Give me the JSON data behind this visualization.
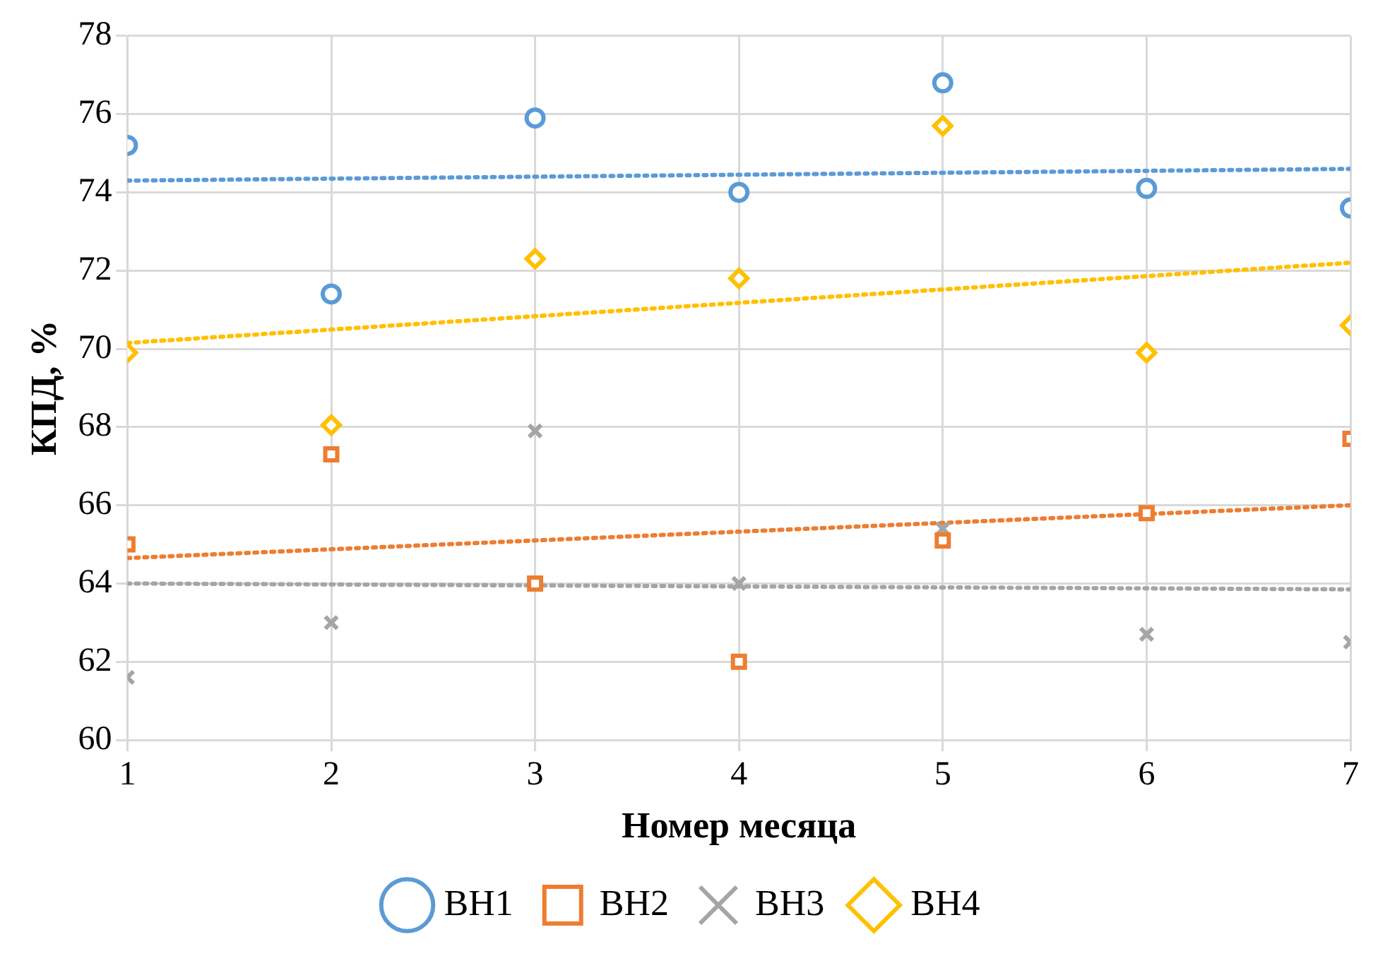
{
  "chart_data": {
    "type": "scatter",
    "xlabel": "Номер месяца",
    "ylabel": "КПД, %",
    "xlim": [
      1,
      7
    ],
    "xticks": [
      1,
      2,
      3,
      4,
      5,
      6,
      7
    ],
    "ylim": [
      60,
      78
    ],
    "yticks": [
      60,
      62,
      64,
      66,
      68,
      70,
      72,
      74,
      76,
      78
    ],
    "grid": true,
    "legend": "bottom",
    "series": [
      {
        "name": "ВН1",
        "color": "#5b9bd5",
        "marker": "circle",
        "x": [
          1,
          2,
          3,
          4,
          5,
          6,
          7
        ],
        "values": [
          75.2,
          71.4,
          75.9,
          74.0,
          76.8,
          74.1,
          73.6
        ]
      },
      {
        "name": "ВН2",
        "color": "#ed7d31",
        "marker": "square",
        "x": [
          1,
          2,
          3,
          4,
          5,
          6,
          7
        ],
        "values": [
          65.0,
          67.3,
          64.0,
          62.0,
          65.1,
          65.8,
          67.7
        ]
      },
      {
        "name": "ВН3",
        "color": "#a5a5a5",
        "marker": "cross",
        "x": [
          1,
          2,
          3,
          4,
          5,
          6,
          7
        ],
        "values": [
          61.6,
          63.0,
          67.9,
          64.0,
          65.4,
          62.7,
          62.5
        ]
      },
      {
        "name": "ВН4",
        "color": "#ffc000",
        "marker": "diamond",
        "x": [
          1,
          2,
          3,
          4,
          5,
          6,
          7
        ],
        "values": [
          69.9,
          68.05,
          72.3,
          71.8,
          75.7,
          69.9,
          70.6
        ]
      },
      {
        "type": "line",
        "color": "#5b9bd5",
        "line_style": "dotted",
        "marker": "none",
        "x": [
          1,
          7
        ],
        "values": [
          74.3,
          74.6
        ]
      },
      {
        "type": "line",
        "color": "#ed7d31",
        "line_style": "dotted",
        "marker": "none",
        "x": [
          1,
          7
        ],
        "values": [
          64.65,
          66.0
        ]
      },
      {
        "type": "line",
        "color": "#a5a5a5",
        "line_style": "dotted",
        "marker": "none",
        "x": [
          1,
          7
        ],
        "values": [
          64.0,
          63.85
        ]
      },
      {
        "type": "line",
        "color": "#ffc000",
        "line_style": "dotted",
        "marker": "none",
        "x": [
          1,
          7
        ],
        "values": [
          70.15,
          72.2
        ]
      }
    ]
  }
}
